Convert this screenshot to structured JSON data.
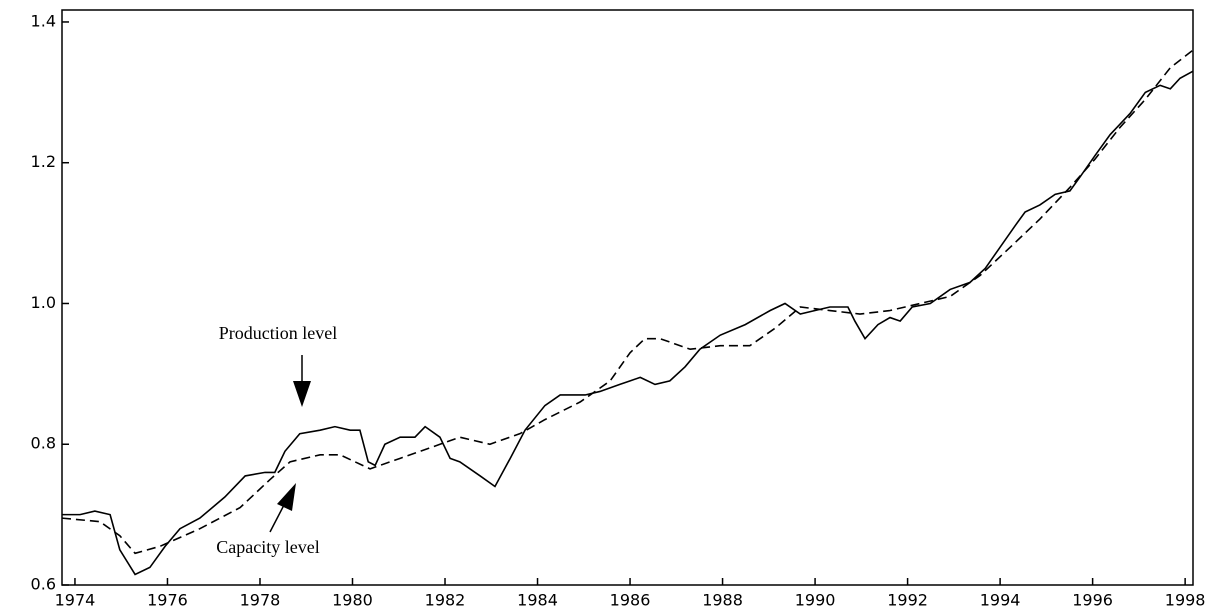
{
  "chart_data": {
    "type": "line",
    "xlim": [
      1973.72,
      1998.17
    ],
    "xticks": [
      1974,
      1976,
      1978,
      1980,
      1982,
      1984,
      1986,
      1988,
      1990,
      1992,
      1994,
      1996,
      1998
    ],
    "ylim": [
      0.6,
      1.417
    ],
    "yticks": [
      0.6,
      0.8,
      {
        "value": 1,
        "label": "1.0"
      },
      1.2,
      1.4
    ],
    "series": [
      {
        "name": "Production level",
        "color": "#000000",
        "style": "solid",
        "x": [
          1973.72,
          1974.11,
          1974.43,
          1974.76,
          1974.97,
          1975.3,
          1975.62,
          1975.95,
          1976.27,
          1976.7,
          1977.24,
          1977.68,
          1978.11,
          1978.32,
          1978.54,
          1978.86,
          1979.3,
          1979.62,
          1979.95,
          1980.16,
          1980.34,
          1980.49,
          1980.7,
          1981.03,
          1981.35,
          1981.57,
          1981.89,
          1982.11,
          1982.32,
          1982.76,
          1983.08,
          1983.41,
          1983.73,
          1984.16,
          1984.49,
          1985.03,
          1985.35,
          1985.78,
          1986.22,
          1986.54,
          1986.86,
          1987.19,
          1987.51,
          1987.95,
          1988.49,
          1989.03,
          1989.35,
          1989.68,
          1990.0,
          1990.32,
          1990.71,
          1990.86,
          1991.08,
          1991.36,
          1991.62,
          1991.84,
          1992.1,
          1992.49,
          1992.92,
          1993.35,
          1993.68,
          1994.0,
          1994.32,
          1994.54,
          1994.86,
          1995.19,
          1995.51,
          1995.73,
          1996.05,
          1996.38,
          1996.81,
          1997.14,
          1997.46,
          1997.68,
          1997.89,
          1998.17
        ],
        "values": [
          0.7,
          0.7,
          0.705,
          0.7,
          0.65,
          0.615,
          0.625,
          0.655,
          0.68,
          0.695,
          0.725,
          0.755,
          0.76,
          0.76,
          0.79,
          0.815,
          0.82,
          0.825,
          0.82,
          0.82,
          0.775,
          0.77,
          0.8,
          0.81,
          0.81,
          0.825,
          0.81,
          0.78,
          0.775,
          0.755,
          0.74,
          0.78,
          0.82,
          0.855,
          0.87,
          0.87,
          0.875,
          0.885,
          0.895,
          0.885,
          0.89,
          0.91,
          0.935,
          0.955,
          0.97,
          0.99,
          1.0,
          0.985,
          0.99,
          0.995,
          0.995,
          0.975,
          0.95,
          0.97,
          0.98,
          0.975,
          0.995,
          1.0,
          1.02,
          1.03,
          1.05,
          1.08,
          1.11,
          1.13,
          1.14,
          1.155,
          1.16,
          1.18,
          1.21,
          1.24,
          1.27,
          1.3,
          1.31,
          1.305,
          1.32,
          1.33
        ]
      },
      {
        "name": "Capacity level",
        "color": "#000000",
        "style": "dashed",
        "x": [
          1973.72,
          1974.54,
          1974.97,
          1975.3,
          1975.84,
          1976.7,
          1977.57,
          1978.22,
          1978.65,
          1979.3,
          1979.73,
          1980.38,
          1981.03,
          1981.68,
          1982.32,
          1982.97,
          1983.62,
          1984.16,
          1984.92,
          1985.57,
          1986.0,
          1986.32,
          1986.65,
          1987.3,
          1987.95,
          1988.59,
          1989.14,
          1989.68,
          1990.32,
          1990.97,
          1991.62,
          1992.27,
          1992.92,
          1993.57,
          1994.22,
          1994.86,
          1995.51,
          1996.05,
          1996.59,
          1997.14,
          1997.68,
          1998.17
        ],
        "values": [
          0.695,
          0.69,
          0.67,
          0.645,
          0.655,
          0.68,
          0.71,
          0.75,
          0.775,
          0.785,
          0.785,
          0.765,
          0.78,
          0.795,
          0.81,
          0.8,
          0.815,
          0.835,
          0.86,
          0.89,
          0.93,
          0.95,
          0.95,
          0.935,
          0.94,
          0.94,
          0.965,
          0.995,
          0.99,
          0.985,
          0.99,
          1.0,
          1.01,
          1.04,
          1.08,
          1.12,
          1.165,
          1.205,
          1.25,
          1.29,
          1.335,
          1.36
        ]
      }
    ]
  }
}
